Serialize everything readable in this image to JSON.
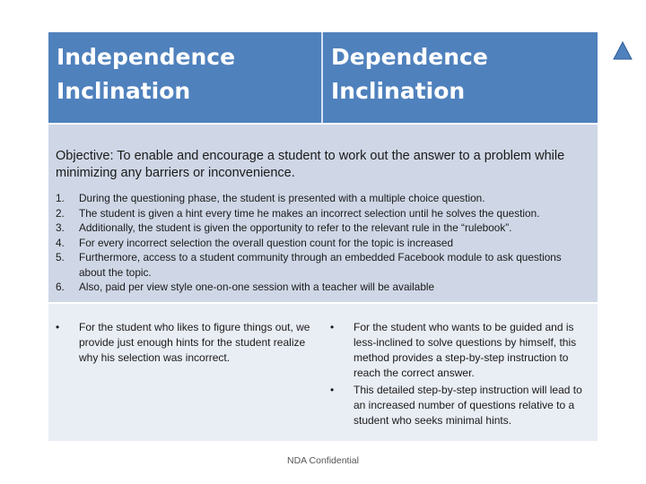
{
  "header": {
    "left_line1": "Independence",
    "left_line2": "Inclination",
    "right_line1": "Dependence",
    "right_line2": "Inclination"
  },
  "objective": "Objective:  To enable and encourage a student to work out the answer to a problem while minimizing any barriers or inconvenience.",
  "steps": [
    {
      "num": "1.",
      "text": "During the questioning phase, the student is presented with a multiple choice question."
    },
    {
      "num": "2.",
      "text": "The student is given a hint every time he makes an incorrect selection until he solves the question."
    },
    {
      "num": "3.",
      "text": "Additionally, the student is given the opportunity to refer to the relevant rule in the “rulebook”."
    },
    {
      "num": "4.",
      "text": "For every incorrect selection the overall question count for the topic is increased"
    },
    {
      "num": "5.",
      "text": "Furthermore, access to a student community through an embedded Facebook module to ask questions about the topic."
    },
    {
      "num": "6.",
      "text": "Also, paid per view style one-on-one session with a teacher will be available"
    }
  ],
  "left_bullets": [
    "For the student who likes to figure things out, we provide just enough hints for the student realize why his selection was incorrect."
  ],
  "right_bullets": [
    "For the student who wants to be guided and is less-inclined to solve questions by himself, this method provides a step-by-step instruction to reach the correct answer.",
    "This detailed step-by-step instruction will lead to an increased number of questions relative to a student who seeks minimal hints."
  ],
  "bullet_glyph": "•",
  "footer": "NDA Confidential",
  "colors": {
    "header": "#4f81bd",
    "middle": "#cfd7e6",
    "bottom": "#e9edf4",
    "triangle": "#4f81bd"
  },
  "icons": {
    "nav": "triangle-up-icon"
  }
}
